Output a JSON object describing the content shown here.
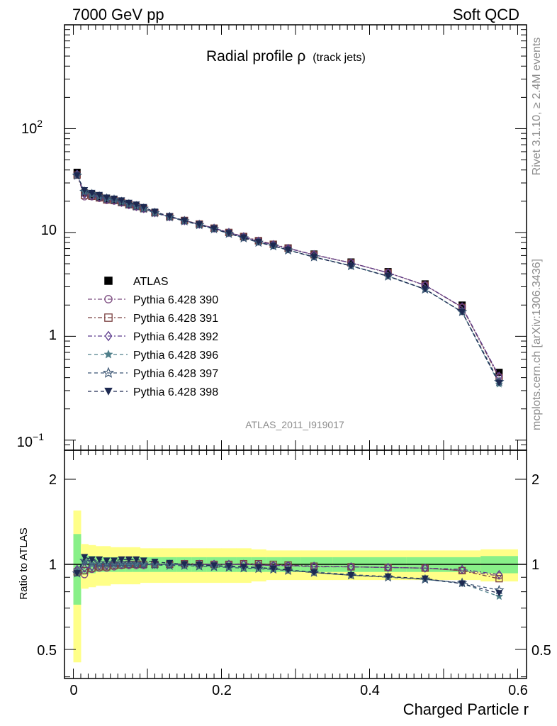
{
  "header": {
    "left": "7000 GeV pp",
    "right": "Soft QCD"
  },
  "side_labels": {
    "rivet": "Rivet 3.1.10, ≥ 2.4M events",
    "mcplots": "mcplots.cern.ch [arXiv:1306.3436]"
  },
  "main_panel": {
    "title_main": "Radial profile ρ",
    "title_sub": "(track jets)",
    "watermark": "ATLAS_2011_I919017",
    "y_ticks": [
      {
        "value": 0.1,
        "base": "10",
        "exp": "−1"
      },
      {
        "value": 1,
        "base": "1",
        "exp": ""
      },
      {
        "value": 10,
        "base": "10",
        "exp": ""
      },
      {
        "value": 100,
        "base": "10",
        "exp": "2"
      }
    ]
  },
  "ratio_panel": {
    "ylabel": "Ratio to ATLAS",
    "y_tick_labels": [
      "0.5",
      "1",
      "2"
    ],
    "x_tick_labels": [
      "0",
      "0.2",
      "0.4",
      "0.6"
    ],
    "xlabel": "Charged Particle r"
  },
  "chart_data": {
    "type": "line",
    "x_scale": "linear",
    "y_scale": "log",
    "xlim": [
      -0.012,
      0.612
    ],
    "ylim": [
      0.08,
      1000
    ],
    "ratio_ylim": [
      0.35,
      2.35
    ],
    "x": [
      0.005,
      0.015,
      0.025,
      0.035,
      0.045,
      0.055,
      0.065,
      0.075,
      0.085,
      0.095,
      0.11,
      0.13,
      0.15,
      0.17,
      0.19,
      0.21,
      0.23,
      0.25,
      0.27,
      0.29,
      0.325,
      0.375,
      0.425,
      0.475,
      0.525,
      0.575
    ],
    "band_inner": [
      0.28,
      0.08,
      0.07,
      0.06,
      0.06,
      0.06,
      0.06,
      0.06,
      0.06,
      0.06,
      0.06,
      0.06,
      0.06,
      0.06,
      0.06,
      0.06,
      0.06,
      0.06,
      0.06,
      0.06,
      0.06,
      0.06,
      0.06,
      0.06,
      0.06,
      0.07
    ],
    "band_outer": [
      0.55,
      0.18,
      0.17,
      0.16,
      0.16,
      0.15,
      0.15,
      0.15,
      0.15,
      0.14,
      0.14,
      0.14,
      0.14,
      0.14,
      0.14,
      0.14,
      0.14,
      0.13,
      0.12,
      0.12,
      0.12,
      0.12,
      0.12,
      0.12,
      0.12,
      0.13
    ],
    "series": [
      {
        "name": "ATLAS",
        "marker": "square",
        "color": "#000000",
        "values": [
          38,
          24,
          23,
          22,
          21,
          20.5,
          19.5,
          18.5,
          17.8,
          17,
          15.5,
          14.2,
          13,
          12,
          11,
          10,
          9.1,
          8.3,
          7.7,
          7.1,
          6.2,
          5.2,
          4.2,
          3.2,
          2.0,
          0.45
        ],
        "ratio": [
          1,
          1,
          1,
          1,
          1,
          1,
          1,
          1,
          1,
          1,
          1,
          1,
          1,
          1,
          1,
          1,
          1,
          1,
          1,
          1,
          1,
          1,
          1,
          1,
          1,
          1
        ]
      },
      {
        "name": "Pythia 6.428 390",
        "marker": "circle-open",
        "color": "#7b4a7f",
        "dash": "6,3,2,3",
        "ratio": [
          0.95,
          0.92,
          0.96,
          0.97,
          0.97,
          0.98,
          0.99,
          0.99,
          0.99,
          0.99,
          1.0,
          1.0,
          1.0,
          1.0,
          1.0,
          1.0,
          1.0,
          0.995,
          0.99,
          0.99,
          0.98,
          0.98,
          0.975,
          0.97,
          0.95,
          0.91
        ]
      },
      {
        "name": "Pythia 6.428 391",
        "marker": "square-open",
        "color": "#7a4040",
        "dash": "6,3,2,3",
        "ratio": [
          0.94,
          0.95,
          0.97,
          0.98,
          0.98,
          0.99,
          0.995,
          1.0,
          1.0,
          1.0,
          1.0,
          1.0,
          1.005,
          1.005,
          1.0,
          1.0,
          1.005,
          1.005,
          1.0,
          0.995,
          0.985,
          0.98,
          0.975,
          0.97,
          0.95,
          0.89
        ]
      },
      {
        "name": "Pythia 6.428 392",
        "marker": "diamond-open",
        "color": "#5b3a8c",
        "dash": "6,3,2,3",
        "ratio": [
          0.96,
          0.97,
          0.98,
          0.99,
          0.99,
          0.995,
          1.0,
          1.0,
          1.0,
          1.0,
          1.0,
          1.0,
          1.0,
          1.0,
          1.0,
          1.0,
          1.0,
          0.995,
          0.99,
          0.99,
          0.985,
          0.98,
          0.975,
          0.97,
          0.96,
          0.92
        ]
      },
      {
        "name": "Pythia 6.428 396",
        "marker": "star",
        "color": "#4f7f8a",
        "dash": "5,4",
        "ratio": [
          0.95,
          1.02,
          1.0,
          1.0,
          1.0,
          1.0,
          1.0,
          1.0,
          1.0,
          1.0,
          1.0,
          1.0,
          0.995,
          0.99,
          0.985,
          0.98,
          0.975,
          0.97,
          0.965,
          0.955,
          0.94,
          0.92,
          0.905,
          0.885,
          0.855,
          0.77
        ]
      },
      {
        "name": "Pythia 6.428 397",
        "marker": "star-open",
        "color": "#3b5573",
        "dash": "5,4",
        "ratio": [
          0.93,
          1.03,
          1.02,
          1.01,
          1.01,
          1.01,
          1.01,
          1.01,
          1.005,
          1.0,
          0.995,
          0.99,
          0.99,
          0.985,
          0.98,
          0.975,
          0.97,
          0.965,
          0.96,
          0.95,
          0.935,
          0.915,
          0.9,
          0.885,
          0.86,
          0.81
        ]
      },
      {
        "name": "Pythia 6.428 398",
        "marker": "triangle-down",
        "color": "#1d2951",
        "dash": "5,4",
        "ratio": [
          0.93,
          1.06,
          1.04,
          1.04,
          1.03,
          1.03,
          1.04,
          1.04,
          1.04,
          1.03,
          1.02,
          1.01,
          1.0,
          0.995,
          0.99,
          0.985,
          0.98,
          0.975,
          0.965,
          0.955,
          0.935,
          0.915,
          0.905,
          0.89,
          0.855,
          0.79
        ]
      }
    ]
  }
}
